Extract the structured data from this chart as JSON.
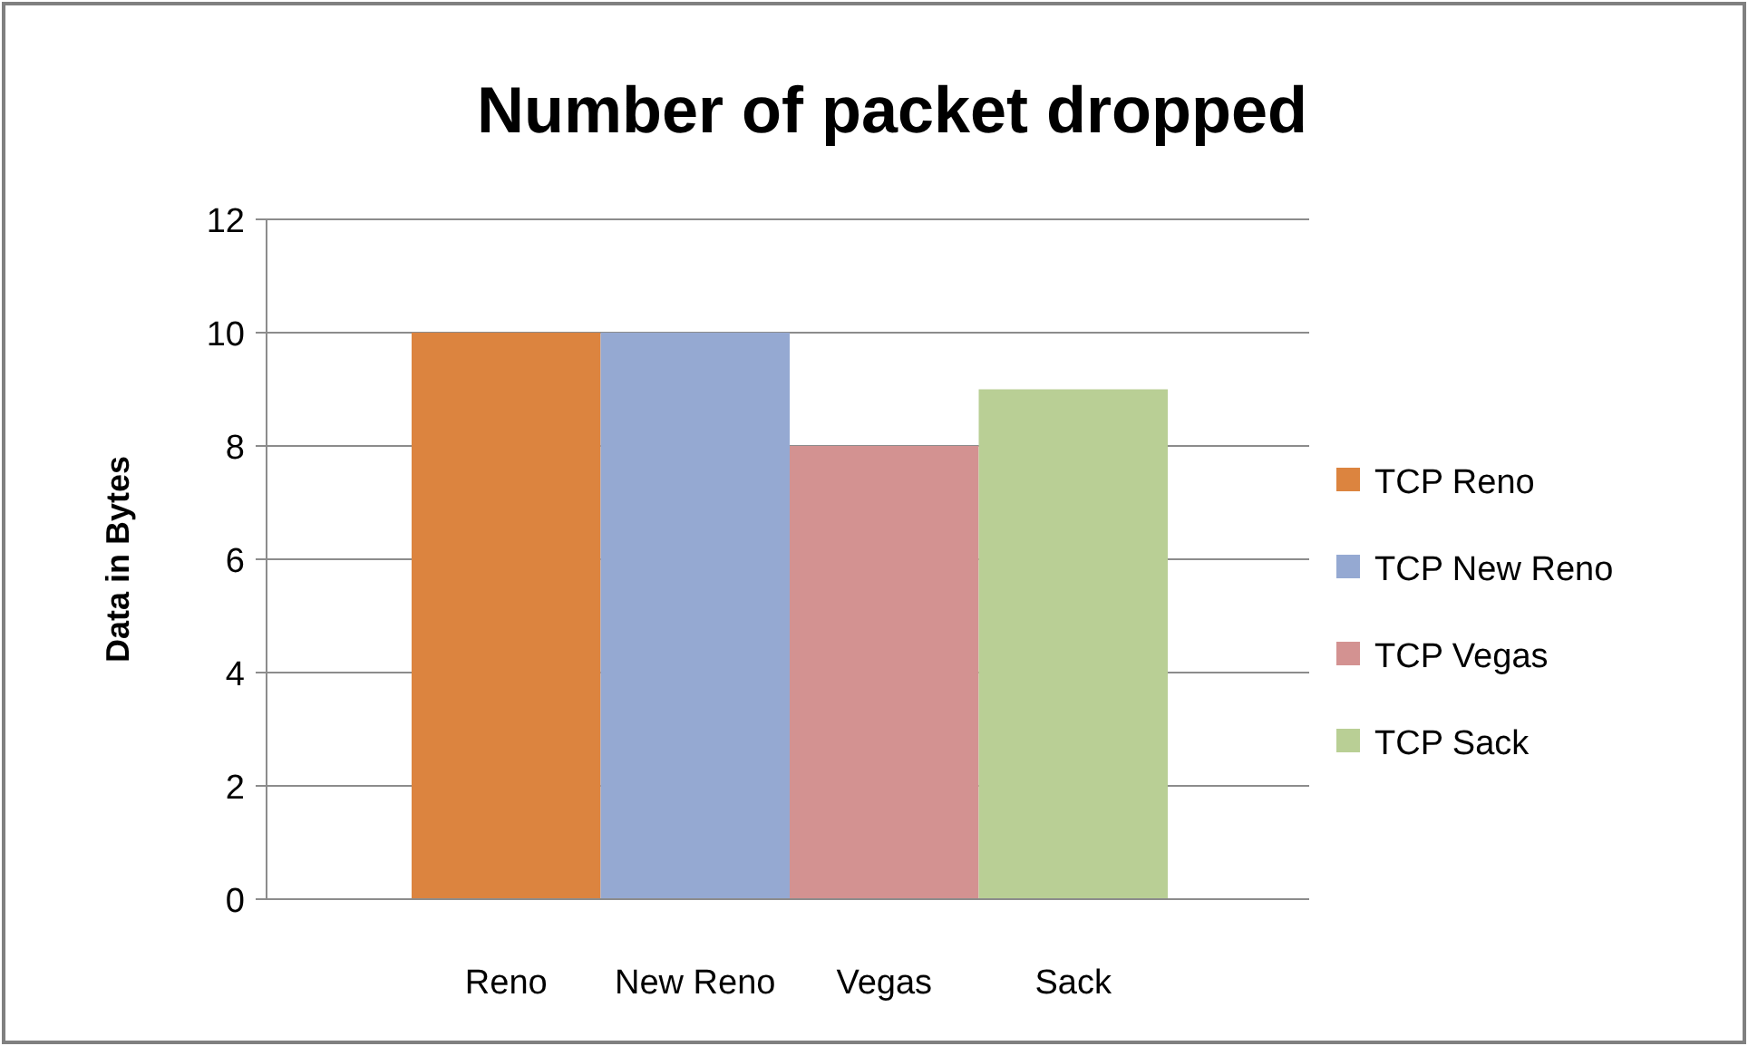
{
  "chart_data": {
    "type": "bar",
    "title": "Number of packet dropped",
    "ylabel": "Data in Bytes",
    "categories": [
      "Reno",
      "New Reno",
      "Vegas",
      "Sack"
    ],
    "stacked": true,
    "series": [
      {
        "name": "TCP Reno",
        "color": "#dc843f",
        "values": [
          10,
          null,
          null,
          null
        ]
      },
      {
        "name": "TCP New Reno",
        "color": "#95a9d2",
        "values": [
          null,
          10,
          null,
          null
        ]
      },
      {
        "name": "TCP Vegas",
        "color": "#d39291",
        "values": [
          null,
          null,
          8,
          null
        ]
      },
      {
        "name": "TCP Sack",
        "color": "#b9cf95",
        "values": [
          null,
          null,
          null,
          9
        ]
      }
    ],
    "ylim": [
      0,
      12
    ],
    "yticks": [
      0,
      2,
      4,
      6,
      8,
      10,
      12
    ],
    "grid": "y",
    "legend": "right"
  }
}
